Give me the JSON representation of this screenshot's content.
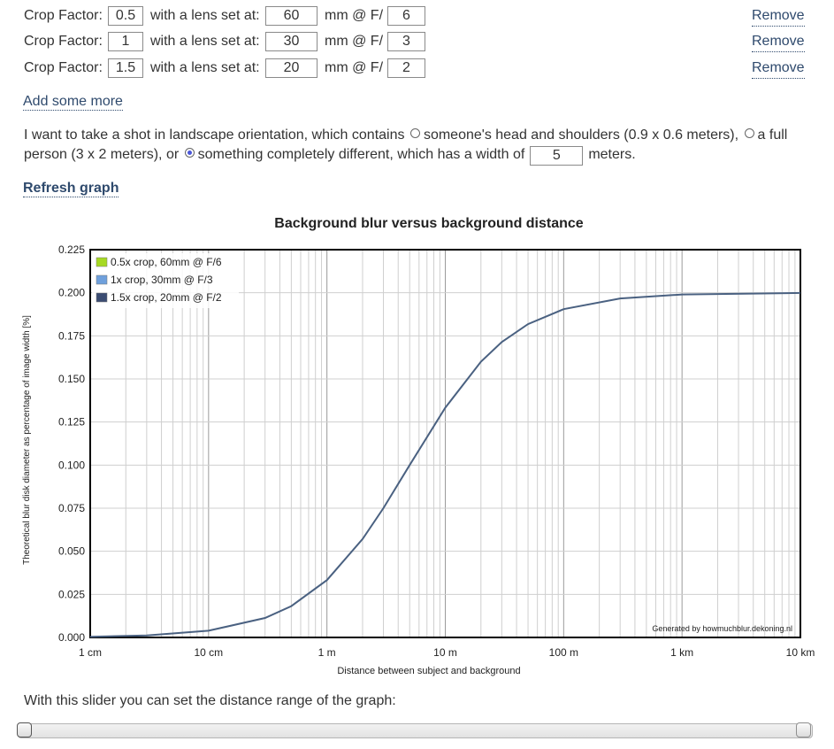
{
  "lens_rows": [
    {
      "crop_label": "Crop Factor:",
      "crop": "0.5",
      "lens_label": "with a lens set at:",
      "focal": "60",
      "mm_label": "mm @ F/",
      "fstop": "6",
      "remove_label": "Remove"
    },
    {
      "crop_label": "Crop Factor:",
      "crop": "1",
      "lens_label": "with a lens set at:",
      "focal": "30",
      "mm_label": "mm @ F/",
      "fstop": "3",
      "remove_label": "Remove"
    },
    {
      "crop_label": "Crop Factor:",
      "crop": "1.5",
      "lens_label": "with a lens set at:",
      "focal": "20",
      "mm_label": "mm @ F/",
      "fstop": "2",
      "remove_label": "Remove"
    }
  ],
  "add_more_label": "Add some more",
  "shot": {
    "intro": "I want to take a shot in landscape orientation, which contains",
    "option1": "someone's head and shoulders (0.9 x 0.6 meters),",
    "option2_a": "a full",
    "option2_b": "person (3 x 2 meters), or",
    "option3": "something completely different, which has a width of",
    "width_value": "5",
    "unit": "meters.",
    "selected": 3
  },
  "refresh_label": "Refresh graph",
  "chart_data": {
    "type": "line",
    "title": "Background blur versus background distance",
    "xlabel": "Distance between subject and background",
    "ylabel": "Theoretical blur disk diameter as percentage of image width [%]",
    "x_scale": "log",
    "xlim_m": [
      0.01,
      10000
    ],
    "ylim": [
      0,
      0.225
    ],
    "x_ticks": [
      {
        "value": 0.01,
        "label": "1 cm"
      },
      {
        "value": 0.1,
        "label": "10 cm"
      },
      {
        "value": 1,
        "label": "1 m"
      },
      {
        "value": 10,
        "label": "10 m"
      },
      {
        "value": 100,
        "label": "100 m"
      },
      {
        "value": 1000,
        "label": "1 km"
      },
      {
        "value": 10000,
        "label": "10 km"
      }
    ],
    "y_ticks": [
      "0.000",
      "0.025",
      "0.050",
      "0.075",
      "0.100",
      "0.125",
      "0.150",
      "0.175",
      "0.200",
      "0.225"
    ],
    "grid": true,
    "legend_position": "top-left",
    "legend": [
      {
        "label": "0.5x crop, 60mm @ F/6",
        "color": "#a6d923"
      },
      {
        "label": "1x crop, 30mm @ F/3",
        "color": "#6fa0dc"
      },
      {
        "label": "1.5x crop, 20mm @ F/2",
        "color": "#3b4c72"
      }
    ],
    "series": [
      {
        "name": "1.5x crop, 20mm @ F/2",
        "color": "#4a6181",
        "x": [
          0.01,
          0.03,
          0.1,
          0.3,
          0.5,
          1,
          2,
          3,
          5,
          10,
          20,
          30,
          50,
          100,
          300,
          1000,
          10000
        ],
        "y": [
          0.0004,
          0.0012,
          0.0039,
          0.0113,
          0.0182,
          0.0333,
          0.0571,
          0.075,
          0.1,
          0.1333,
          0.16,
          0.1714,
          0.1818,
          0.1905,
          0.1967,
          0.199,
          0.1999
        ]
      }
    ],
    "annotation": "Generated by howmuchblur.dekoning.nl"
  },
  "slider": {
    "label": "With this slider you can set the distance range of the graph:",
    "min_fraction": 0.0,
    "max_fraction": 1.0
  }
}
